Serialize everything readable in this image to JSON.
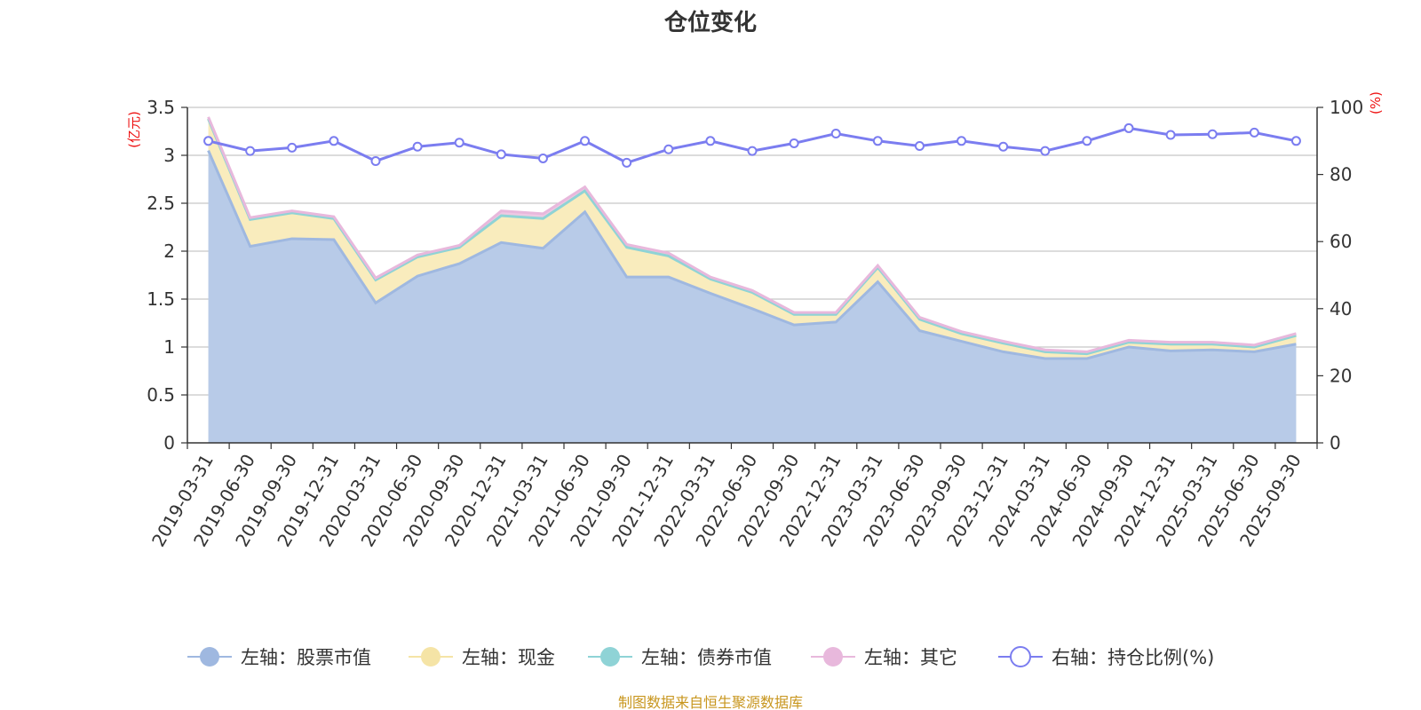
{
  "chart_data": {
    "type": "area",
    "title": "仓位变化",
    "left_axis_unit": "(亿元)",
    "right_axis_unit": "(%)",
    "ylim_left": [
      0,
      3.5
    ],
    "ylim_right": [
      0,
      100
    ],
    "left_ticks": [
      "0",
      "0.5",
      "1",
      "1.5",
      "2",
      "2.5",
      "3",
      "3.5"
    ],
    "right_ticks": [
      "0",
      "20",
      "40",
      "60",
      "80",
      "100"
    ],
    "categories": [
      "2019-03-31",
      "2019-06-30",
      "2019-09-30",
      "2019-12-31",
      "2020-03-31",
      "2020-06-30",
      "2020-09-30",
      "2020-12-31",
      "2021-03-31",
      "2021-06-30",
      "2021-09-30",
      "2021-12-31",
      "2022-03-31",
      "2022-06-30",
      "2022-09-30",
      "2022-12-31",
      "2023-03-31",
      "2023-06-30",
      "2023-09-30",
      "2023-12-31",
      "2024-03-31",
      "2024-06-30",
      "2024-09-30",
      "2024-12-31",
      "2025-03-31",
      "2025-06-30",
      "2025-09-30"
    ],
    "series": [
      {
        "name": "左轴：股票市值",
        "axis": "left",
        "stacked": true,
        "color": "#9fb8e0",
        "fill": "#b8cbe8",
        "values": [
          3.05,
          2.05,
          2.13,
          2.12,
          1.46,
          1.74,
          1.87,
          2.09,
          2.03,
          2.41,
          1.73,
          1.73,
          1.56,
          1.4,
          1.23,
          1.26,
          1.68,
          1.17,
          1.06,
          0.95,
          0.88,
          0.88,
          1.0,
          0.96,
          0.97,
          0.95,
          1.03
        ]
      },
      {
        "name": "左轴：现金",
        "axis": "left",
        "stacked": true,
        "color": "#f5e4a6",
        "fill": "#f9ecbd",
        "values": [
          0.33,
          0.28,
          0.27,
          0.22,
          0.24,
          0.2,
          0.17,
          0.28,
          0.31,
          0.22,
          0.31,
          0.22,
          0.15,
          0.17,
          0.11,
          0.08,
          0.15,
          0.12,
          0.08,
          0.09,
          0.07,
          0.05,
          0.05,
          0.07,
          0.06,
          0.05,
          0.09
        ]
      },
      {
        "name": "左轴：债券市值",
        "axis": "left",
        "stacked": true,
        "color": "#8fd3d6",
        "fill": "#a6dde0",
        "values": [
          0,
          0,
          0,
          0,
          0,
          0,
          0,
          0,
          0,
          0,
          0,
          0,
          0,
          0,
          0,
          0,
          0,
          0,
          0,
          0,
          0,
          0,
          0,
          0,
          0,
          0,
          0
        ]
      },
      {
        "name": "左轴：其它",
        "axis": "left",
        "stacked": true,
        "color": "#e8b8dc",
        "fill": "#eec8e4",
        "values": [
          0.02,
          0.02,
          0.02,
          0.02,
          0.02,
          0.02,
          0.02,
          0.05,
          0.05,
          0.04,
          0.03,
          0.03,
          0.02,
          0.02,
          0.02,
          0.02,
          0.02,
          0.02,
          0.02,
          0.02,
          0.02,
          0.02,
          0.02,
          0.02,
          0.02,
          0.02,
          0.02
        ]
      },
      {
        "name": "右轴：持仓比例(%)",
        "axis": "right",
        "stacked": false,
        "color": "#7b7df0",
        "fill": "none",
        "values": [
          90,
          87,
          88,
          90,
          84,
          88.3,
          89.5,
          86,
          84.8,
          90,
          83.5,
          87.5,
          90,
          87,
          89.3,
          92.2,
          90,
          88.5,
          90,
          88.3,
          87,
          90,
          93.8,
          91.8,
          92,
          92.5,
          90
        ]
      }
    ],
    "legend_position": "bottom",
    "grid": true
  },
  "source_note": "制图数据来自恒生聚源数据库"
}
